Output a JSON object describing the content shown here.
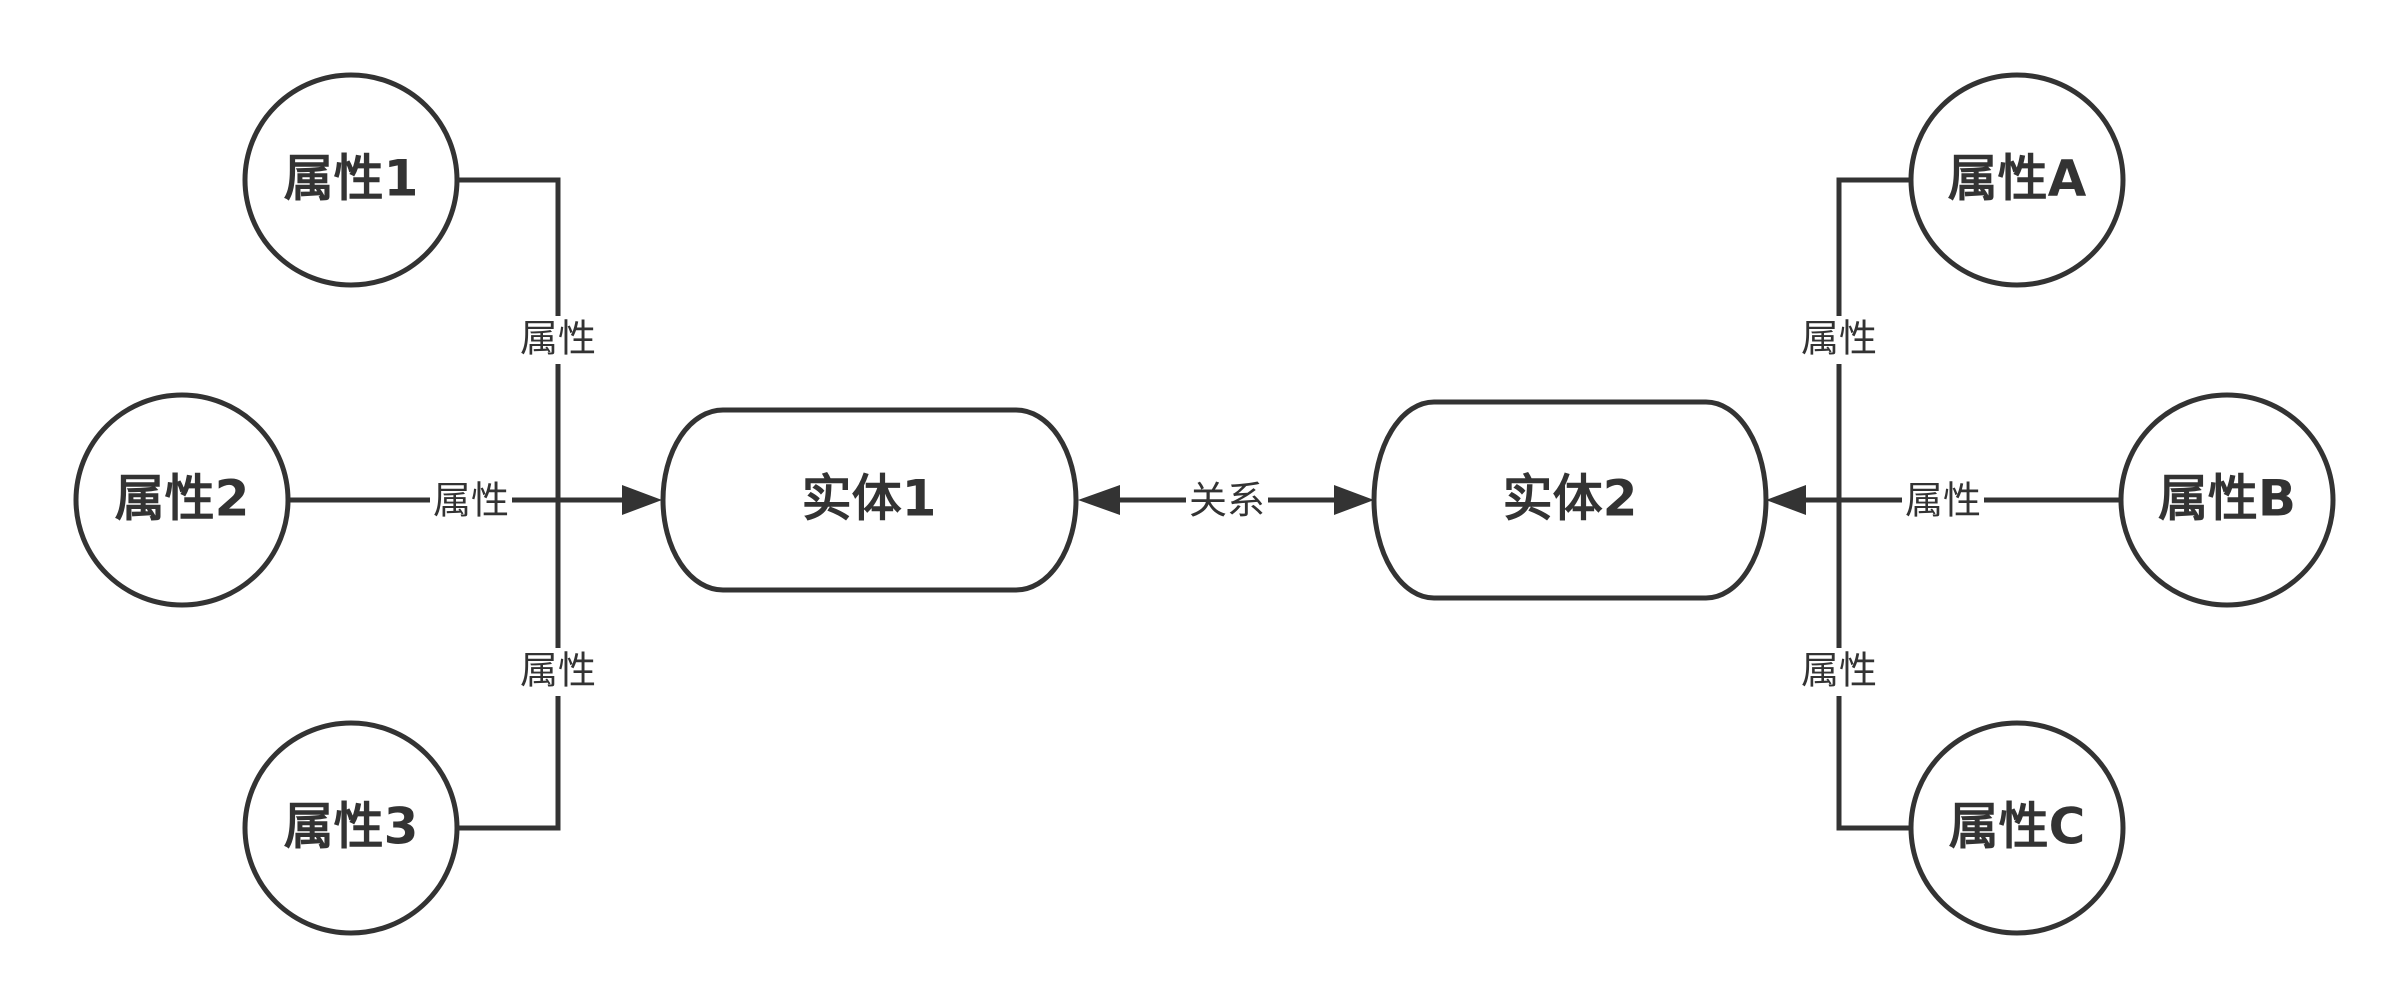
{
  "colors": {
    "stroke": "#333333",
    "fill": "#ffffff",
    "text": "#333333"
  },
  "entities": {
    "entity1": {
      "label": "实体1"
    },
    "entity2": {
      "label": "实体2"
    }
  },
  "relation": {
    "label": "关系"
  },
  "attributes": {
    "attr1": {
      "label": "属性1"
    },
    "attr2": {
      "label": "属性2"
    },
    "attr3": {
      "label": "属性3"
    },
    "attrA": {
      "label": "属性A"
    },
    "attrB": {
      "label": "属性B"
    },
    "attrC": {
      "label": "属性C"
    }
  },
  "edges": {
    "attr1_to_entity1": {
      "label": "属性"
    },
    "attr2_to_entity1": {
      "label": "属性"
    },
    "attr3_to_entity1": {
      "label": "属性"
    },
    "attrA_to_entity2": {
      "label": "属性"
    },
    "attrB_to_entity2": {
      "label": "属性"
    },
    "attrC_to_entity2": {
      "label": "属性"
    }
  }
}
